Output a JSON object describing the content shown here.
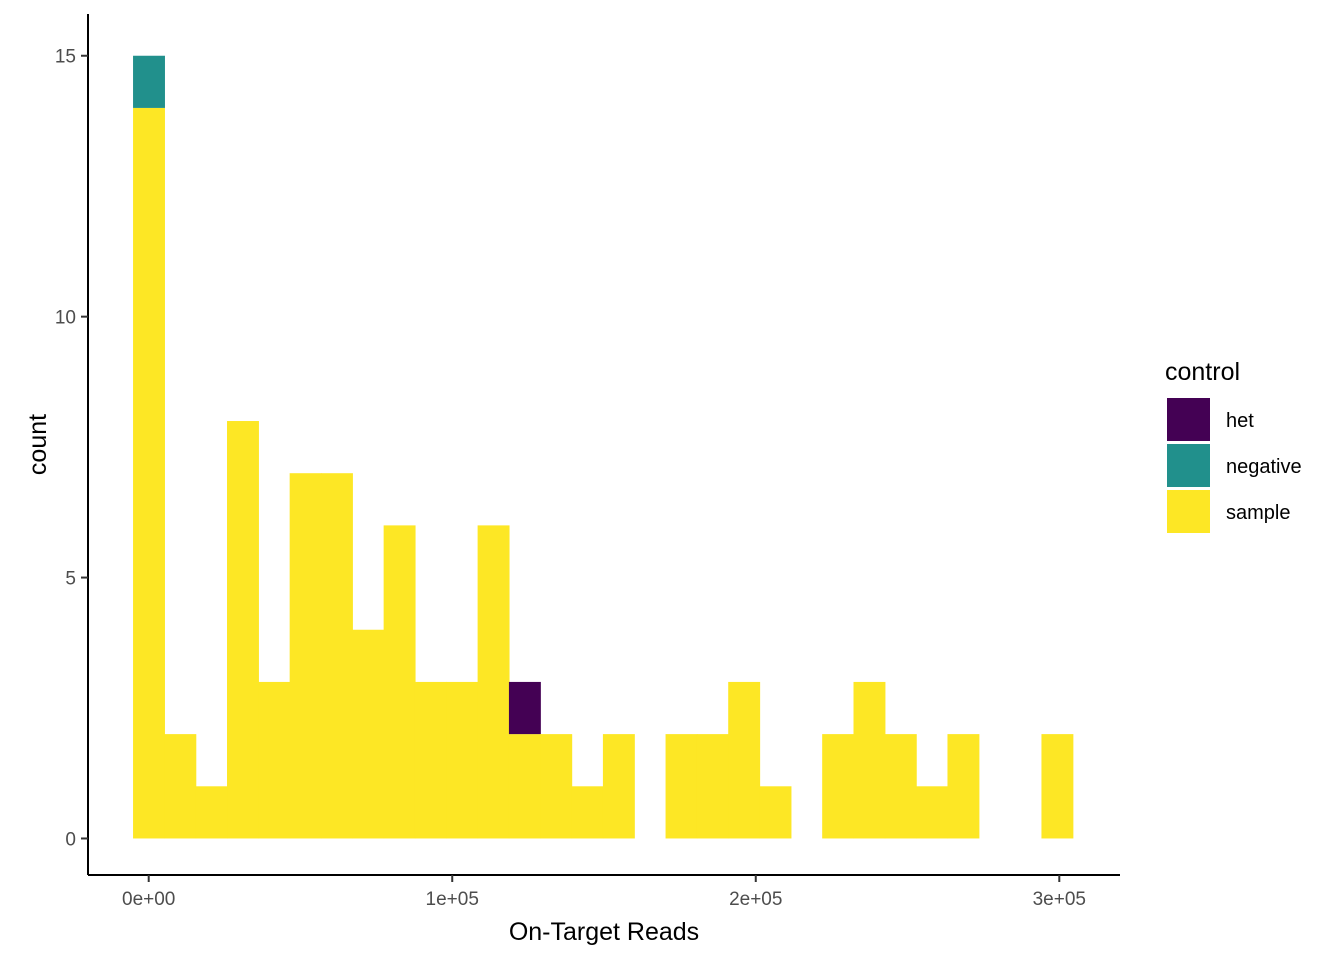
{
  "chart_data": {
    "type": "bar",
    "subtype": "stacked-histogram",
    "xlabel": "On-Target Reads",
    "ylabel": "count",
    "xlim": [
      -20000,
      320000
    ],
    "ylim": [
      -0.7,
      15.8
    ],
    "bin_width": 10320,
    "x_ticks": [
      {
        "value": 0,
        "label": "0e+00"
      },
      {
        "value": 100000,
        "label": "1e+05"
      },
      {
        "value": 200000,
        "label": "2e+05"
      },
      {
        "value": 300000,
        "label": "3e+05"
      }
    ],
    "y_ticks": [
      {
        "value": 0,
        "label": "0"
      },
      {
        "value": 5,
        "label": "5"
      },
      {
        "value": 10,
        "label": "10"
      },
      {
        "value": 15,
        "label": "15"
      }
    ],
    "bin_centers": [
      0,
      10320,
      20640,
      30960,
      41280,
      51600,
      61920,
      72240,
      82560,
      92880,
      103200,
      113520,
      123840,
      134160,
      144480,
      154800,
      165120,
      175440,
      185760,
      196080,
      206400,
      216720,
      227040,
      237360,
      247680,
      258000,
      268320,
      278640,
      288960,
      299280
    ],
    "series": [
      {
        "name": "sample",
        "color": "#FDE725",
        "values": [
          14,
          2,
          1,
          8,
          3,
          7,
          7,
          4,
          6,
          3,
          3,
          6,
          2,
          2,
          1,
          2,
          0,
          2,
          2,
          3,
          1,
          0,
          2,
          3,
          2,
          1,
          2,
          0,
          0,
          2
        ]
      },
      {
        "name": "negative",
        "color": "#21908C",
        "values": [
          1,
          0,
          0,
          0,
          0,
          0,
          0,
          0,
          0,
          0,
          0,
          0,
          0,
          0,
          0,
          0,
          0,
          0,
          0,
          0,
          0,
          0,
          0,
          0,
          0,
          0,
          0,
          0,
          0,
          0
        ]
      },
      {
        "name": "het",
        "color": "#440154",
        "values": [
          0,
          0,
          0,
          0,
          0,
          0,
          0,
          0,
          0,
          0,
          0,
          0,
          1,
          0,
          0,
          0,
          0,
          0,
          0,
          0,
          0,
          0,
          0,
          0,
          0,
          0,
          0,
          0,
          0,
          0
        ]
      }
    ],
    "grid": false,
    "legend": {
      "title": "control",
      "placement": "right",
      "entries": [
        {
          "label": "het",
          "color": "#440154"
        },
        {
          "label": "negative",
          "color": "#21908C"
        },
        {
          "label": "sample",
          "color": "#FDE725"
        }
      ]
    }
  }
}
